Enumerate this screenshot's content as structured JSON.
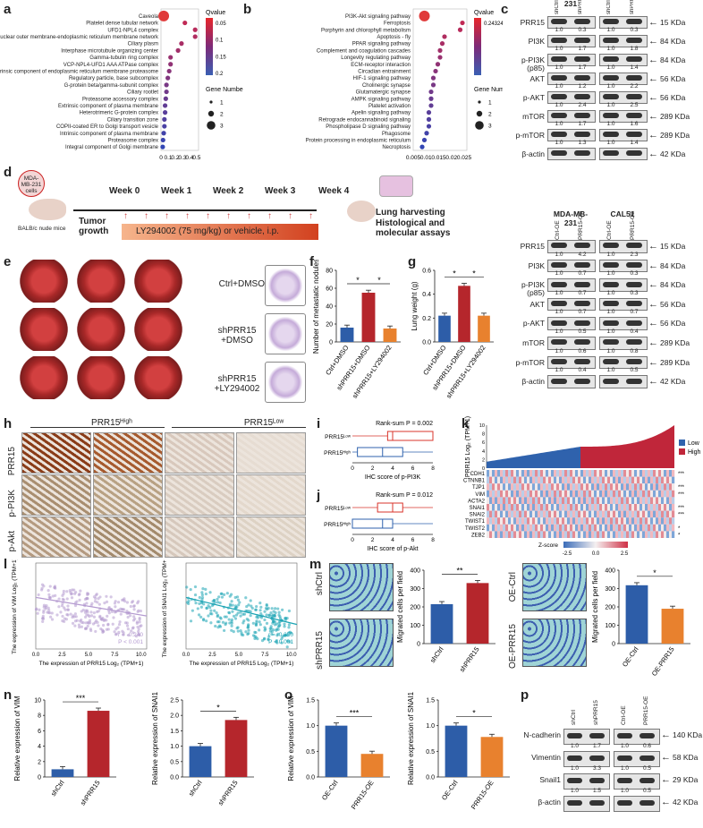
{
  "panels": {
    "a": "a",
    "b": "b",
    "c": "c",
    "d": "d",
    "e": "e",
    "f": "f",
    "g": "g",
    "h": "h",
    "i": "i",
    "j": "j",
    "k": "k",
    "l": "l",
    "m": "m",
    "n": "n",
    "o": "o",
    "p": "p"
  },
  "chart_data": [
    {
      "type": "scatter",
      "panel": "a",
      "xlabel": "Rich Ratio",
      "categories": [
        "Caveola",
        "Platelet dense tubular network",
        "UFD1-NPL4 complex",
        "Nuclear outer membrane-endoplasmic reticulum membrane network",
        "Ciliary plasm",
        "Interphase microtubule organizing center",
        "Gamma-tubulin ring complex",
        "VCP-NPL4-UFD1 AAA ATPase complex",
        "Extrinsic component of endoplasmic reticulum membrane proteasome",
        "Regulatory particle, base subcomplex",
        "G-protein beta/gamma-subunit complex",
        "Ciliary rootlet",
        "Proteasome accessory complex",
        "Extrinsic component of plasma membrane",
        "Heterotrimeric G-protein complex",
        "Ciliary transition zone",
        "COPII-coated ER to Golgi transport vesicle",
        "Intrinsic component of plasma membrane",
        "Proteasome complex",
        "Integral component of Golgi membrane"
      ],
      "x": [
        0.04,
        0.35,
        0.5,
        0.5,
        0.3,
        0.25,
        0.14,
        0.14,
        0.12,
        0.1,
        0.08,
        0.08,
        0.07,
        0.06,
        0.06,
        0.05,
        0.05,
        0.04,
        0.03,
        0.025
      ],
      "xticks": [
        "0",
        "0.1",
        "0.2",
        "0.3",
        "0.4",
        "0.5"
      ],
      "colorbar_title": "Qvalue",
      "colorbar_ticks": [
        "0.05",
        "0.1",
        "0.15",
        "0.2"
      ],
      "size_legend_title": "Gene Number",
      "size_legend": [
        "1",
        "2",
        "3"
      ]
    },
    {
      "type": "scatter",
      "panel": "b",
      "xlabel": "Rich Ratio",
      "categories": [
        "PI3K-Akt signaling pathway",
        "Ferroptosis",
        "Porphyrin and chlorophyll metabolism",
        "Apoptosis - fly",
        "PPAR signaling pathway",
        "Complement and coagulation cascades",
        "Longevity regulating pathway",
        "ECM-receptor interaction",
        "Circadian entrainment",
        "HIF-1 signaling pathway",
        "Cholinergic synapse",
        "Glutamatergic synapse",
        "AMPK signaling pathway",
        "Platelet activation",
        "Apelin signaling pathway",
        "Retrograde endocannabinoid signaling",
        "Phospholipase D signaling pathway",
        "Phagosome",
        "Protein processing in endoplasmic reticulum",
        "Necroptosis"
      ],
      "x": [
        0.008,
        0.025,
        0.024,
        0.017,
        0.016,
        0.015,
        0.015,
        0.014,
        0.013,
        0.012,
        0.012,
        0.011,
        0.011,
        0.011,
        0.01,
        0.01,
        0.01,
        0.009,
        0.008,
        0.007
      ],
      "xticks": [
        "0.005",
        "0.01",
        "0.015",
        "0.02",
        "0.025"
      ],
      "colorbar_title": "Qvalue",
      "colorbar_ticks": [
        "0.24324"
      ],
      "size_legend_title": "Gene Number",
      "size_legend": [
        "1",
        "2",
        "3"
      ]
    },
    {
      "type": "bar",
      "panel": "f",
      "ylabel": "Number of metastatic nodules",
      "categories": [
        "Ctrl+DMSO",
        "shPRR15+DMSO",
        "shPRR15+LY294002"
      ],
      "values": [
        16,
        55,
        15
      ],
      "ylim": [
        0,
        80
      ],
      "yticks": [
        "0",
        "20",
        "40",
        "60",
        "80"
      ],
      "colors": [
        "#2d5da8",
        "#b5262c",
        "#e8812e"
      ],
      "sig": [
        "*",
        "*"
      ]
    },
    {
      "type": "bar",
      "panel": "g",
      "ylabel": "Lung weight (g)",
      "categories": [
        "Ctrl+DMSO",
        "shPRR15+DMSO",
        "shPRR15+LY294002"
      ],
      "values": [
        0.22,
        0.47,
        0.22
      ],
      "ylim": [
        0,
        0.6
      ],
      "yticks": [
        "0.0",
        "0.2",
        "0.4",
        "0.6"
      ],
      "colors": [
        "#2d5da8",
        "#b5262c",
        "#e8812e"
      ],
      "sig": [
        "*",
        "*"
      ]
    },
    {
      "type": "bar",
      "panel": "m-left",
      "ylabel": "Migrated cells per field",
      "categories": [
        "shCtrl",
        "shPRR15"
      ],
      "values": [
        215,
        330
      ],
      "ylim": [
        0,
        400
      ],
      "yticks": [
        "0",
        "100",
        "200",
        "300",
        "400"
      ],
      "colors": [
        "#2d5da8",
        "#b5262c"
      ],
      "sig": [
        "**"
      ]
    },
    {
      "type": "bar",
      "panel": "m-right",
      "ylabel": "Migrated cells per field",
      "categories": [
        "OE-Ctrl",
        "OE-PRR15"
      ],
      "values": [
        318,
        190
      ],
      "ylim": [
        0,
        400
      ],
      "yticks": [
        "0",
        "100",
        "200",
        "300",
        "400"
      ],
      "colors": [
        "#2d5da8",
        "#e8812e"
      ],
      "sig": [
        "*"
      ]
    },
    {
      "type": "bar",
      "panel": "n-vim",
      "ylabel": "Relative expression of VIM",
      "categories": [
        "shCtrl",
        "shPRR15"
      ],
      "values": [
        1.0,
        8.6
      ],
      "ylim": [
        0,
        10
      ],
      "yticks": [
        "0",
        "2",
        "4",
        "6",
        "8",
        "10"
      ],
      "colors": [
        "#2d5da8",
        "#b5262c"
      ],
      "sig": [
        "***"
      ]
    },
    {
      "type": "bar",
      "panel": "n-snai1",
      "ylabel": "Relative expression of SNAI1",
      "categories": [
        "shCtrl",
        "shPRR15"
      ],
      "values": [
        1.0,
        1.85
      ],
      "ylim": [
        0,
        2.5
      ],
      "yticks": [
        "0.0",
        "0.5",
        "1.0",
        "1.5",
        "2.0",
        "2.5"
      ],
      "colors": [
        "#2d5da8",
        "#b5262c"
      ],
      "sig": [
        "*"
      ]
    },
    {
      "type": "bar",
      "panel": "o-vim",
      "ylabel": "Relative expression of VIM",
      "categories": [
        "OE-Ctrl",
        "PRR15-OE"
      ],
      "values": [
        1.0,
        0.45
      ],
      "ylim": [
        0,
        1.5
      ],
      "yticks": [
        "0.0",
        "0.5",
        "1.0",
        "1.5"
      ],
      "colors": [
        "#2d5da8",
        "#e8812e"
      ],
      "sig": [
        "***"
      ]
    },
    {
      "type": "bar",
      "panel": "o-snai1",
      "ylabel": "Relative expression of SNAI1",
      "categories": [
        "OE-Ctrl",
        "PRR15-OE"
      ],
      "values": [
        1.0,
        0.78
      ],
      "ylim": [
        0,
        1.5
      ],
      "yticks": [
        "0.0",
        "0.5",
        "1.0",
        "1.5"
      ],
      "colors": [
        "#2d5da8",
        "#e8812e"
      ],
      "sig": [
        "*"
      ]
    }
  ],
  "blot_c_top": {
    "header_left": "MDA-MB-231",
    "header_right": "CAL51",
    "lanes": [
      "shCtrl",
      "shPRR15",
      "shCtrl",
      "shPRR15"
    ],
    "rows": [
      {
        "name": "PRR15",
        "kda": "15 KDa",
        "vals": [
          "1.0",
          "0.3",
          "1.0",
          "0.3"
        ]
      },
      {
        "name": "PI3K",
        "kda": "84 KDa",
        "vals": [
          "1.0",
          "1.7",
          "1.0",
          "1.8"
        ]
      },
      {
        "name": "p-PI3K (p85)",
        "kda": "84 KDa",
        "vals": [
          "1.0",
          "1.7",
          "1.0",
          "1.4"
        ]
      },
      {
        "name": "AKT",
        "kda": "56 KDa",
        "vals": [
          "1.0",
          "1.2",
          "1.0",
          "2.2"
        ]
      },
      {
        "name": "p-AKT",
        "kda": "56 KDa",
        "vals": [
          "1.0",
          "2.4",
          "1.0",
          "2.5"
        ]
      },
      {
        "name": "mTOR",
        "kda": "289 KDa",
        "vals": [
          "1.0",
          "1.7",
          "1.0",
          "1.6"
        ]
      },
      {
        "name": "p-mTOR",
        "kda": "289 KDa",
        "vals": [
          "1.0",
          "1.3",
          "1.0",
          "1.4"
        ]
      },
      {
        "name": "β-actin",
        "kda": "42 KDa",
        "vals": []
      }
    ]
  },
  "blot_c_bottom": {
    "header_left": "MDA-MB-231",
    "header_right": "CAL51",
    "lanes": [
      "Ctrl-OE",
      "PRR15-OE",
      "Ctrl-OE",
      "PRR15-OE"
    ],
    "rows": [
      {
        "name": "PRR15",
        "kda": "15 KDa",
        "vals": [
          "1.0",
          "4.2",
          "1.0",
          "2.3"
        ]
      },
      {
        "name": "PI3K",
        "kda": "84 KDa",
        "vals": [
          "1.0",
          "0.7",
          "1.0",
          "0.3"
        ]
      },
      {
        "name": "p-PI3K (p85)",
        "kda": "84 KDa",
        "vals": [
          "1.0",
          "0.7",
          "1.0",
          "0.3"
        ]
      },
      {
        "name": "AKT",
        "kda": "56 KDa",
        "vals": [
          "1.0",
          "0.7",
          "1.0",
          "0.7"
        ]
      },
      {
        "name": "p-AKT",
        "kda": "56 KDa",
        "vals": [
          "1.0",
          "0.5",
          "1.0",
          "0.4"
        ]
      },
      {
        "name": "mTOR",
        "kda": "289 KDa",
        "vals": [
          "1.0",
          "0.6",
          "1.0",
          "0.8"
        ]
      },
      {
        "name": "p-mTOR",
        "kda": "289 KDa",
        "vals": [
          "1.0",
          "0.4",
          "1.0",
          "0.5"
        ]
      },
      {
        "name": "β-actin",
        "kda": "42 KDa",
        "vals": []
      }
    ]
  },
  "blot_p": {
    "lanes": [
      "shCtrl",
      "shPRR15",
      "Ctrl-OE",
      "PRR15-OE"
    ],
    "rows": [
      {
        "name": "N-cadherin",
        "kda": "140 KDa",
        "vals": [
          "1.0",
          "1.7",
          "1.0",
          "0.6"
        ]
      },
      {
        "name": "Vimentin",
        "kda": "58 KDa",
        "vals": [
          "1.0",
          "3.3",
          "1.0",
          "0.5"
        ]
      },
      {
        "name": "Snail1",
        "kda": "29 KDa",
        "vals": [
          "1.0",
          "1.5",
          "1.0",
          "0.5"
        ]
      },
      {
        "name": "β-actin",
        "kda": "42 KDa",
        "vals": []
      }
    ]
  },
  "timeline": {
    "cells_label": "MDA-MB-231 cells",
    "mouse_label": "BALB/c nude mice",
    "weeks": [
      "Week 0",
      "Week 1",
      "Week 2",
      "Week 3",
      "Week 4"
    ],
    "growth": "Tumor growth",
    "treatment": "LY294002 (75 mg/kg) or vehicle, i.p.",
    "outcomes": [
      "Lung harvesting",
      "Histological and molecular assays"
    ]
  },
  "e_labels": [
    "Ctrl+DMSO",
    "shPRR15 +DMSO",
    "shPRR15 +LY294002"
  ],
  "h": {
    "high": "PRR15ᴴⁱᵍʰ",
    "low": "PRR15ᴸᵒʷ",
    "rows": [
      "PRR15",
      "p-PI3K",
      "p-Akt"
    ]
  },
  "i": {
    "pval": "Rank-sum P = 0.002",
    "xlabel": "IHC score of p-PI3K",
    "low": "PRR15ᴸᵒʷ",
    "high": "PRR15ᴴⁱᵍʰ",
    "xticks": [
      "0",
      "2",
      "4",
      "6",
      "8"
    ]
  },
  "j": {
    "pval": "Rank-sum P = 0.012",
    "xlabel": "IHC score of p-Akt",
    "low": "PRR15ᴸᵒʷ",
    "high": "PRR15ᴴⁱᵍʰ",
    "xticks": [
      "0",
      "2",
      "4",
      "6",
      "8"
    ]
  },
  "k": {
    "ylabel": "PRR15 Log₂ (TPM+1)",
    "yticks": [
      "0",
      "2",
      "4",
      "6",
      "8",
      "10"
    ],
    "legend": [
      "Low",
      "High"
    ],
    "genes": [
      "CDH1",
      "CTNNB1",
      "TJP1",
      "VIM",
      "ACTA2",
      "SNAI1",
      "SNAI2",
      "TWIST1",
      "TWIST2",
      "ZEB2"
    ],
    "stars": [
      "***",
      "",
      "***",
      "***",
      "",
      "***",
      "***",
      "",
      "*",
      "*"
    ],
    "zlabel": "Z-score",
    "zticks": [
      "-2.5",
      "0.0",
      "2.5"
    ]
  },
  "l": {
    "left_ylabel": "The expression of VIM Log₂ (TPM+1)",
    "right_ylabel": "The expression of SNAI1 Log₂ (TPM+1)",
    "xlabel": "The expression of PRR15 Log₂ (TPM+1)",
    "left_stats": [
      "r = -0.240",
      "P < 0.001"
    ],
    "right_stats": [
      "r = -0.350",
      "P < 0.001"
    ],
    "xticks": [
      "0.0",
      "2.5",
      "5.0",
      "7.5",
      "10.0"
    ]
  },
  "m_labels": [
    "shCtrl",
    "shPRR15",
    "OE-Ctrl",
    "OE-PRR15"
  ]
}
